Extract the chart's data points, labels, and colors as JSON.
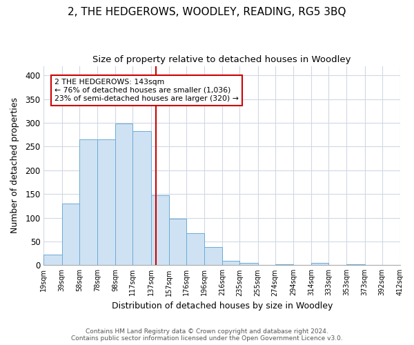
{
  "title": "2, THE HEDGEROWS, WOODLEY, READING, RG5 3BQ",
  "subtitle": "Size of property relative to detached houses in Woodley",
  "xlabel": "Distribution of detached houses by size in Woodley",
  "ylabel": "Number of detached properties",
  "bar_left_edges": [
    19,
    39,
    58,
    78,
    98,
    117,
    137,
    157,
    176,
    196,
    216,
    235,
    255,
    274,
    294,
    314,
    333,
    353,
    373,
    392
  ],
  "bar_heights": [
    22,
    130,
    265,
    265,
    298,
    283,
    148,
    98,
    67,
    38,
    9,
    5,
    0,
    2,
    0,
    5,
    0,
    2,
    0,
    0
  ],
  "bar_widths": [
    20,
    19,
    20,
    20,
    19,
    20,
    20,
    19,
    20,
    20,
    19,
    20,
    19,
    20,
    20,
    19,
    20,
    20,
    19,
    20
  ],
  "bar_color": "#cfe2f3",
  "bar_edgecolor": "#6aaad4",
  "vline_x": 143,
  "vline_color": "#cc0000",
  "xlim": [
    19,
    412
  ],
  "ylim": [
    0,
    420
  ],
  "yticks": [
    0,
    50,
    100,
    150,
    200,
    250,
    300,
    350,
    400
  ],
  "xtick_labels": [
    "19sqm",
    "39sqm",
    "58sqm",
    "78sqm",
    "98sqm",
    "117sqm",
    "137sqm",
    "157sqm",
    "176sqm",
    "196sqm",
    "216sqm",
    "235sqm",
    "255sqm",
    "274sqm",
    "294sqm",
    "314sqm",
    "333sqm",
    "353sqm",
    "373sqm",
    "392sqm",
    "412sqm"
  ],
  "xtick_positions": [
    19,
    39,
    58,
    78,
    98,
    117,
    137,
    157,
    176,
    196,
    216,
    235,
    255,
    274,
    294,
    314,
    333,
    353,
    373,
    392,
    412
  ],
  "annotation_title": "2 THE HEDGEROWS: 143sqm",
  "annotation_line1": "← 76% of detached houses are smaller (1,036)",
  "annotation_line2": "23% of semi-detached houses are larger (320) →",
  "footer1": "Contains HM Land Registry data © Crown copyright and database right 2024.",
  "footer2": "Contains public sector information licensed under the Open Government Licence v3.0.",
  "background_color": "#ffffff",
  "grid_color": "#d0d8e4",
  "title_fontsize": 11,
  "subtitle_fontsize": 9.5,
  "axis_label_fontsize": 9,
  "footer_fontsize": 6.5
}
